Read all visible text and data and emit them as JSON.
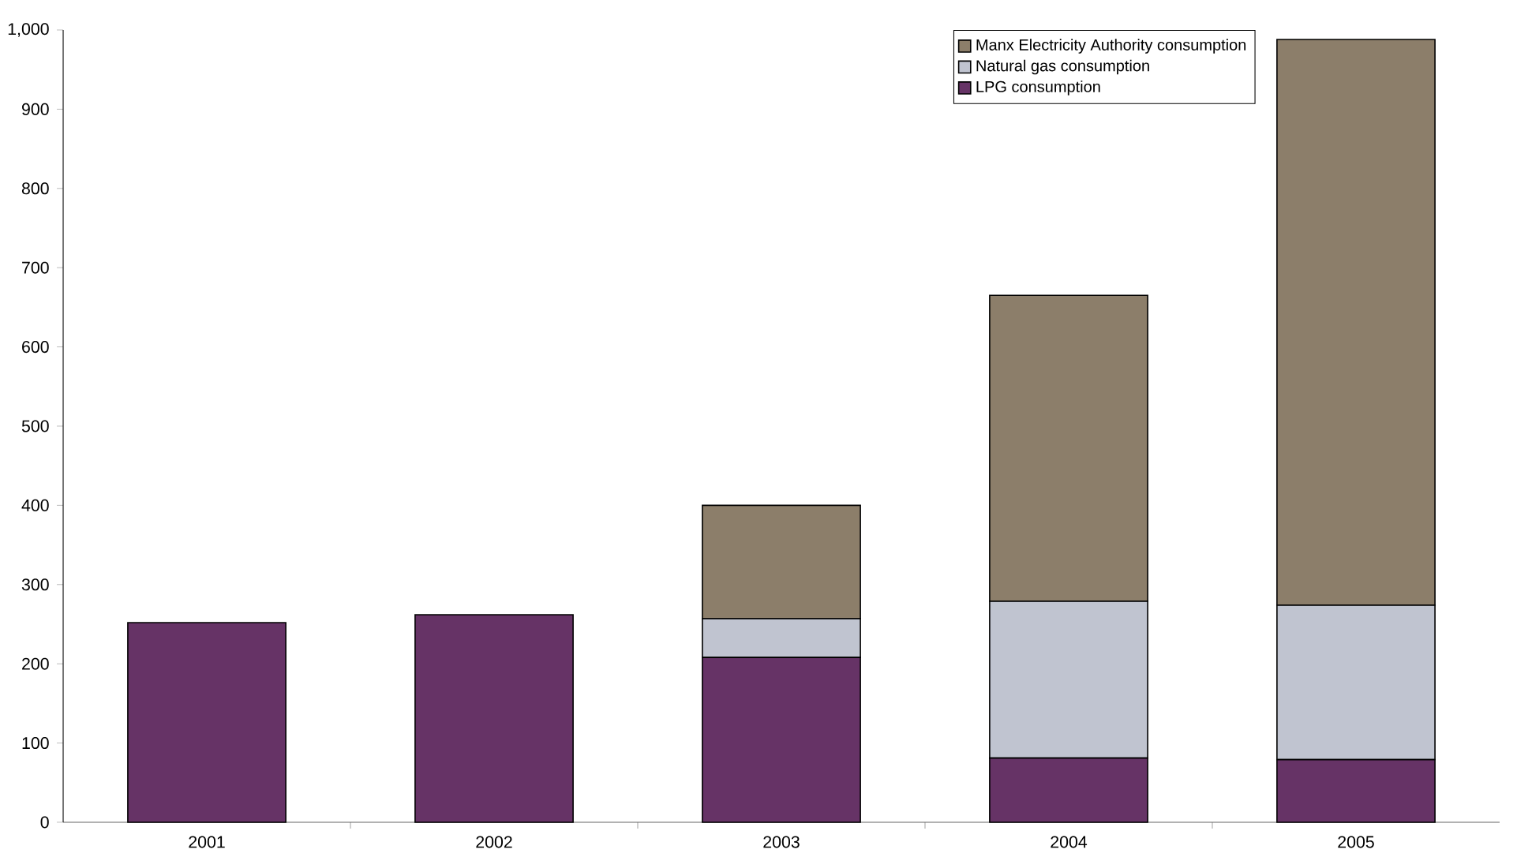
{
  "chart_data": {
    "type": "bar",
    "stacked": true,
    "categories": [
      "2001",
      "2002",
      "2003",
      "2004",
      "2005"
    ],
    "series": [
      {
        "name": "LPG consumption",
        "color": "#663366",
        "values": [
          252,
          262,
          208,
          81,
          79
        ]
      },
      {
        "name": "Natural gas consumption",
        "color": "#c0c4d0",
        "values": [
          null,
          null,
          49,
          198,
          195
        ]
      },
      {
        "name": "Manx Electricity Authority consumption",
        "color": "#8c7e6a",
        "values": [
          null,
          null,
          143,
          386,
          714
        ]
      }
    ],
    "ylim": [
      0,
      1000
    ],
    "yticks": [
      0,
      100,
      200,
      300,
      400,
      500,
      600,
      700,
      800,
      900,
      {
        "value": 1000,
        "label": "1,000"
      }
    ],
    "grid": false,
    "legend": "top right"
  }
}
